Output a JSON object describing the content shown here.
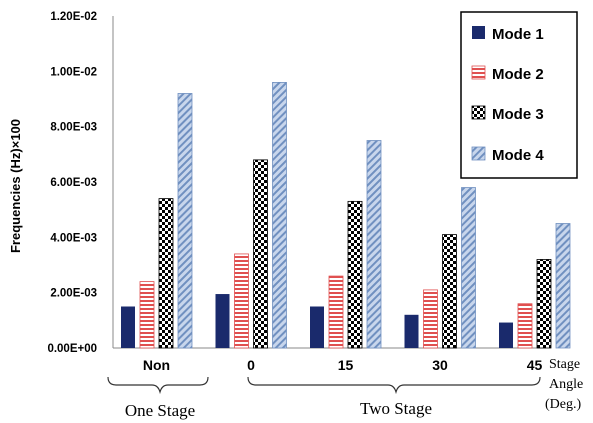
{
  "chart_data": {
    "type": "bar",
    "title": "",
    "ylabel": "Frequencies (Hz)×100",
    "xlabel_lines": [
      "Stage",
      "Angle",
      "(Deg.)"
    ],
    "ylim": [
      0,
      0.012
    ],
    "yticks": [
      0,
      0.002,
      0.004,
      0.006,
      0.008,
      0.01,
      0.012
    ],
    "ytick_labels": [
      "0.00E+00",
      "2.00E-03",
      "4.00E-03",
      "6.00E-03",
      "8.00E-03",
      "1.00E-02",
      "1.20E-02"
    ],
    "categories": [
      "Non",
      "0",
      "15",
      "30",
      "45"
    ],
    "groups": [
      {
        "label": "One Stage",
        "categories": [
          "Non"
        ]
      },
      {
        "label": "Two Stage",
        "categories": [
          "0",
          "15",
          "30",
          "45"
        ]
      }
    ],
    "legend_position": "top-right",
    "grid": false,
    "series": [
      {
        "name": "Mode 1",
        "pattern": "solid",
        "color": "#1a2a6c",
        "values": [
          0.0015,
          0.00195,
          0.0015,
          0.0012,
          0.00092
        ]
      },
      {
        "name": "Mode 2",
        "pattern": "horizontal-stripes",
        "color": "#e05050",
        "values": [
          0.0024,
          0.0034,
          0.0026,
          0.0021,
          0.0016
        ]
      },
      {
        "name": "Mode 3",
        "pattern": "checkerboard",
        "color": "#000000",
        "values": [
          0.0054,
          0.0068,
          0.0053,
          0.0041,
          0.0032
        ]
      },
      {
        "name": "Mode 4",
        "pattern": "diagonal-stripes",
        "color": "#7090c0",
        "values": [
          0.0092,
          0.0096,
          0.0075,
          0.0058,
          0.0045
        ]
      }
    ]
  }
}
